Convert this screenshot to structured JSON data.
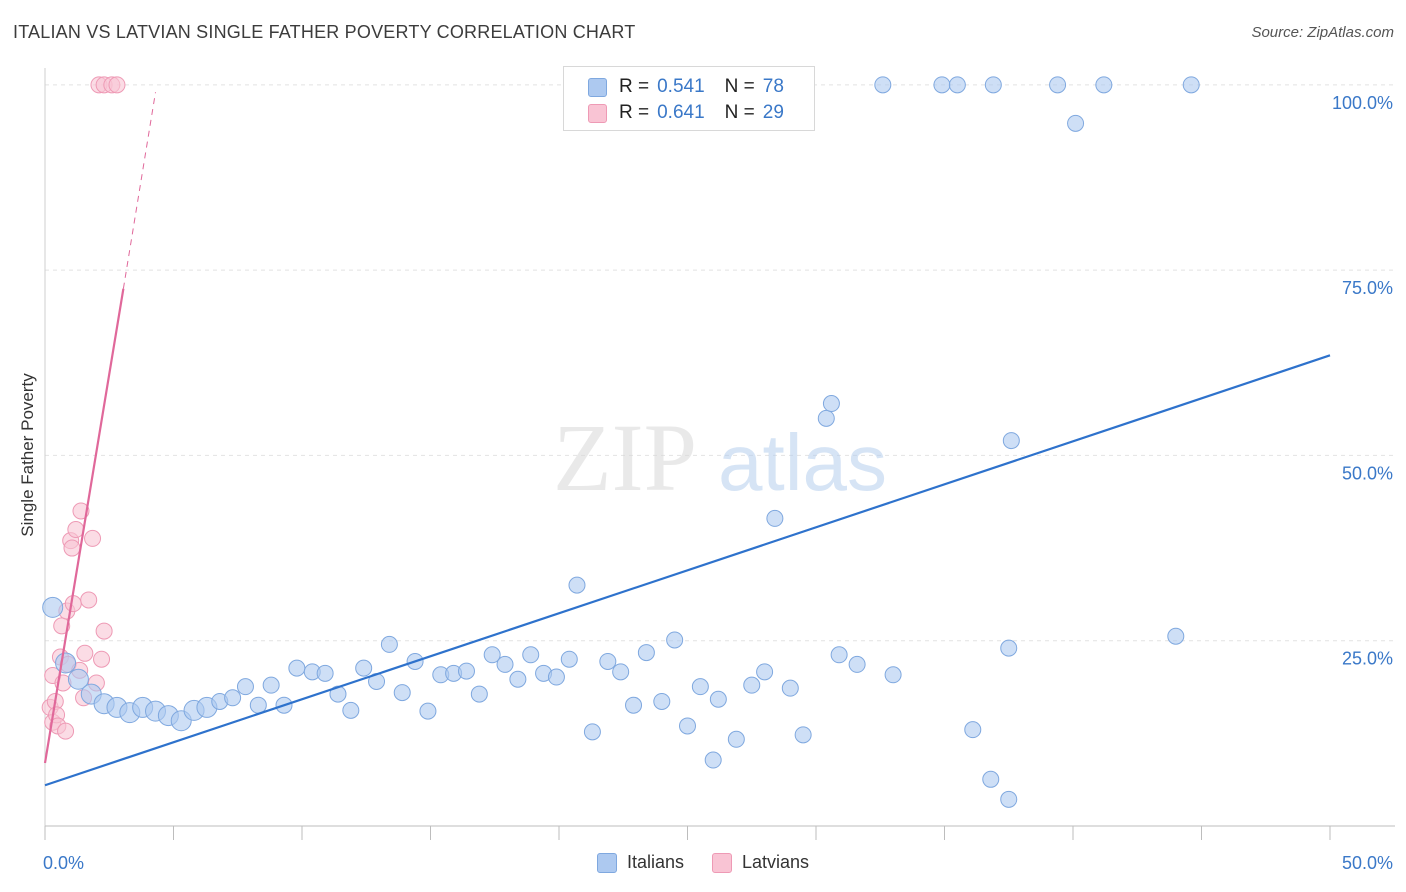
{
  "header": {
    "title": "ITALIAN VS LATVIAN SINGLE FATHER POVERTY CORRELATION CHART",
    "source": "Source: ZipAtlas.com"
  },
  "watermark": {
    "zip": "ZIP",
    "atlas": "atlas"
  },
  "legend": {
    "italians": {
      "r_label": "R =",
      "r_value": "0.541",
      "n_label": "N =",
      "n_value": "78"
    },
    "latvians": {
      "r_label": "R =",
      "r_value": "0.641",
      "n_label": "N =",
      "n_value": "29"
    }
  },
  "colors": {
    "italians_fill": "#adc9f0",
    "italians_stroke": "#7fa8df",
    "italians_line": "#2e72cc",
    "latvians_fill": "#f9c4d4",
    "latvians_stroke": "#ee9ab5",
    "latvians_line": "#e0689a",
    "tick_label": "#3a78c8",
    "grid": "#e2e2e2"
  },
  "chart_data": {
    "type": "scatter",
    "title": "ITALIAN VS LATVIAN SINGLE FATHER POVERTY CORRELATION CHART",
    "xlabel": "",
    "ylabel": "Single Father Poverty",
    "xlim": [
      0,
      50
    ],
    "ylim": [
      0,
      102
    ],
    "x_tick_labels": [
      "0.0%",
      "50.0%"
    ],
    "y_ticks": [
      25,
      50,
      75,
      100
    ],
    "y_tick_labels": [
      "25.0%",
      "50.0%",
      "75.0%",
      "100.0%"
    ],
    "grid": true,
    "legend_position": "bottom-center",
    "series": [
      {
        "name": "Italians",
        "r": 0.541,
        "n": 78,
        "trend": {
          "x": [
            0,
            50
          ],
          "y": [
            5.5,
            63.5
          ]
        },
        "points": [
          [
            0.3,
            29.5
          ],
          [
            0.8,
            22.0
          ],
          [
            1.3,
            19.8
          ],
          [
            1.8,
            17.8
          ],
          [
            2.3,
            16.5
          ],
          [
            2.8,
            16.0
          ],
          [
            3.3,
            15.3
          ],
          [
            3.8,
            16.0
          ],
          [
            4.3,
            15.5
          ],
          [
            4.8,
            14.9
          ],
          [
            5.3,
            14.2
          ],
          [
            5.8,
            15.6
          ],
          [
            6.3,
            16.0
          ],
          [
            6.8,
            16.8
          ],
          [
            7.3,
            17.3
          ],
          [
            7.8,
            18.8
          ],
          [
            8.3,
            16.3
          ],
          [
            8.8,
            19.0
          ],
          [
            9.3,
            16.3
          ],
          [
            9.8,
            21.3
          ],
          [
            10.4,
            20.8
          ],
          [
            10.9,
            20.6
          ],
          [
            11.4,
            17.8
          ],
          [
            11.9,
            15.6
          ],
          [
            12.4,
            21.3
          ],
          [
            12.9,
            19.5
          ],
          [
            13.4,
            24.5
          ],
          [
            13.9,
            18.0
          ],
          [
            14.4,
            22.2
          ],
          [
            14.9,
            15.5
          ],
          [
            15.4,
            20.4
          ],
          [
            15.9,
            20.6
          ],
          [
            16.4,
            20.9
          ],
          [
            16.9,
            17.8
          ],
          [
            17.4,
            23.1
          ],
          [
            17.9,
            21.8
          ],
          [
            18.4,
            19.8
          ],
          [
            18.9,
            23.1
          ],
          [
            19.4,
            20.6
          ],
          [
            19.9,
            20.1
          ],
          [
            20.4,
            22.5
          ],
          [
            20.7,
            32.5
          ],
          [
            21.3,
            12.7
          ],
          [
            21.9,
            22.2
          ],
          [
            22.4,
            20.8
          ],
          [
            22.9,
            16.3
          ],
          [
            23.4,
            23.4
          ],
          [
            24.0,
            16.8
          ],
          [
            24.5,
            25.1
          ],
          [
            25.0,
            13.5
          ],
          [
            25.5,
            18.8
          ],
          [
            26.0,
            8.9
          ],
          [
            26.2,
            17.1
          ],
          [
            26.9,
            11.7
          ],
          [
            27.5,
            19.0
          ],
          [
            28.0,
            20.8
          ],
          [
            28.4,
            41.5
          ],
          [
            29.0,
            18.6
          ],
          [
            29.5,
            12.3
          ],
          [
            30.4,
            55.0
          ],
          [
            30.6,
            57.0
          ],
          [
            30.9,
            23.1
          ],
          [
            31.6,
            21.8
          ],
          [
            32.6,
            100.0
          ],
          [
            33.0,
            20.4
          ],
          [
            34.9,
            100.0
          ],
          [
            35.5,
            100.0
          ],
          [
            36.1,
            13.0
          ],
          [
            36.8,
            6.3
          ],
          [
            36.9,
            100.0
          ],
          [
            37.5,
            24.0
          ],
          [
            37.5,
            3.6
          ],
          [
            37.6,
            52.0
          ],
          [
            39.4,
            100.0
          ],
          [
            40.1,
            94.8
          ],
          [
            41.2,
            100.0
          ],
          [
            44.0,
            25.6
          ],
          [
            44.6,
            100.0
          ]
        ]
      },
      {
        "name": "Latvians",
        "r": 0.641,
        "n": 29,
        "trend": {
          "x": [
            0,
            3.05
          ],
          "y": [
            8.5,
            72.5
          ]
        },
        "trend_extension": {
          "x": [
            3.05,
            4.3
          ],
          "y": [
            72.5,
            99.0
          ]
        },
        "points": [
          [
            0.2,
            16.0
          ],
          [
            0.3,
            20.3
          ],
          [
            0.3,
            14.0
          ],
          [
            0.4,
            16.8
          ],
          [
            0.45,
            15.0
          ],
          [
            0.5,
            13.5
          ],
          [
            0.6,
            22.8
          ],
          [
            0.65,
            27.0
          ],
          [
            0.7,
            19.3
          ],
          [
            0.8,
            12.8
          ],
          [
            0.85,
            29.0
          ],
          [
            0.9,
            21.8
          ],
          [
            1.0,
            38.5
          ],
          [
            1.05,
            37.5
          ],
          [
            1.1,
            30.0
          ],
          [
            1.2,
            40.0
          ],
          [
            1.35,
            21.0
          ],
          [
            1.4,
            42.5
          ],
          [
            1.5,
            17.3
          ],
          [
            1.55,
            23.3
          ],
          [
            1.7,
            30.5
          ],
          [
            1.85,
            38.8
          ],
          [
            2.0,
            19.3
          ],
          [
            2.2,
            22.5
          ],
          [
            2.3,
            26.3
          ],
          [
            2.1,
            100.0
          ],
          [
            2.3,
            100.0
          ],
          [
            2.6,
            100.0
          ],
          [
            2.8,
            100.0
          ]
        ]
      }
    ]
  }
}
